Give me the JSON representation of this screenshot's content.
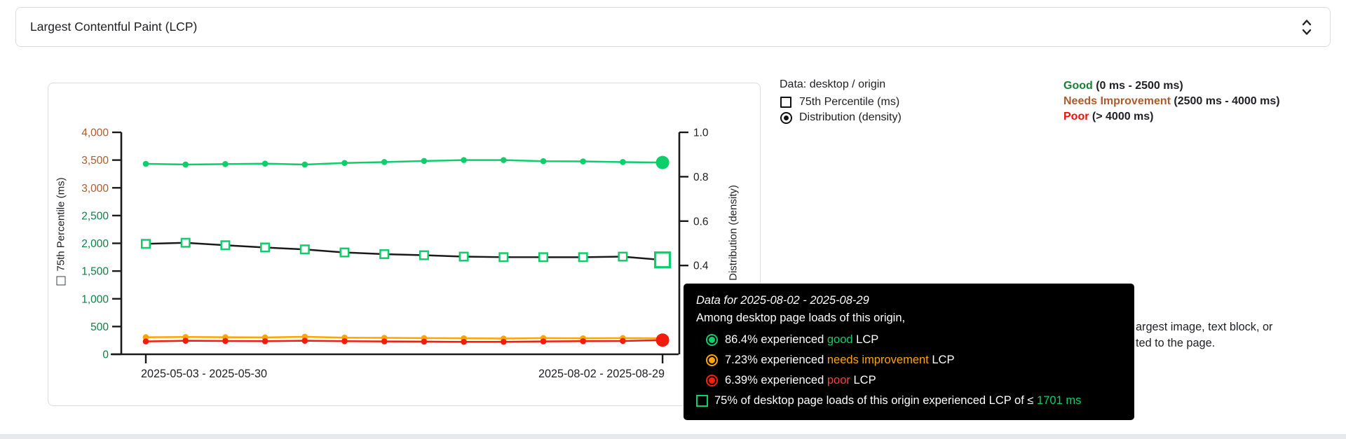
{
  "header": {
    "title": "Largest Contentful Paint (LCP)"
  },
  "meta": {
    "data_label": "Data: desktop / origin",
    "series_legend": [
      {
        "icon": "square-outline-icon",
        "label": "75th Percentile (ms)"
      },
      {
        "icon": "radio-filled-icon",
        "label": "Distribution (density)"
      }
    ],
    "thresholds": [
      {
        "name": "Good",
        "range": " (0 ms - 2500 ms)",
        "color": "#188038"
      },
      {
        "name": "Needs Improvement",
        "range": " (2500 ms - 4000 ms)",
        "color": "#ac5b2e"
      },
      {
        "name": "Poor",
        "range": " (> 4000 ms)",
        "color": "#e8140b"
      }
    ]
  },
  "description_fragments": {
    "line1": "argest image, text block, or",
    "line2": "ted to the page."
  },
  "tooltip": {
    "title": "Data for 2025-08-02 - 2025-08-29",
    "subtitle": "Among desktop page loads of this origin,",
    "rows": [
      {
        "icon": "good-circle-icon",
        "color": "#0cce6b",
        "prefix": "86.4% experienced ",
        "highlight": "good",
        "suffix": " LCP"
      },
      {
        "icon": "needs-improvement-circle-icon",
        "color": "#ffa400",
        "prefix": "7.23% experienced ",
        "highlight": "needs improvement",
        "suffix": " LCP"
      },
      {
        "icon": "poor-circle-icon",
        "color": "#ff1c0f",
        "prefix": "6.39% experienced ",
        "highlight": "poor",
        "suffix": " LCP"
      },
      {
        "icon": "p75-square-icon",
        "color": "#0cce6b",
        "prefix": "75% of desktop page loads of this origin experienced LCP of ≤ ",
        "highlight": "1701 ms",
        "suffix": ""
      }
    ]
  },
  "chart_data": {
    "type": "line",
    "title": "",
    "x_tick_labels": [
      "2025-05-03 - 2025-05-30",
      "2025-08-02 - 2025-08-29"
    ],
    "x_point_count": 14,
    "left_axis": {
      "label": "75th Percentile (ms)",
      "lim": [
        0,
        4000
      ],
      "ticks": [
        {
          "label": "4,000",
          "value": 4000,
          "color": "#ac5b2e"
        },
        {
          "label": "3,500",
          "value": 3500,
          "color": "#ac5b2e"
        },
        {
          "label": "3,000",
          "value": 3000,
          "color": "#ac5b2e"
        },
        {
          "label": "2,500",
          "value": 2500,
          "color": "#0a8145"
        },
        {
          "label": "2,000",
          "value": 2000,
          "color": "#0a8145"
        },
        {
          "label": "1,500",
          "value": 1500,
          "color": "#0a8145"
        },
        {
          "label": "1,000",
          "value": 1000,
          "color": "#0a8145"
        },
        {
          "label": "500",
          "value": 500,
          "color": "#0a8145"
        },
        {
          "label": "0",
          "value": 0,
          "color": "#0a8145"
        }
      ]
    },
    "right_axis": {
      "label": "Distribution (density)",
      "lim": [
        0,
        1
      ],
      "ticks": [
        {
          "label": "1.0",
          "value": 1.0
        },
        {
          "label": "0.8",
          "value": 0.8
        },
        {
          "label": "0.6",
          "value": 0.6
        },
        {
          "label": "0.4",
          "value": 0.4
        }
      ]
    },
    "series": [
      {
        "name": "needs-improvement-density",
        "axis": "right",
        "color": "#ffa400",
        "marker": "dot",
        "end_marker": "dot",
        "values": [
          0.077,
          0.078,
          0.077,
          0.076,
          0.079,
          0.075,
          0.074,
          0.073,
          0.072,
          0.071,
          0.073,
          0.072,
          0.073,
          0.0723
        ]
      },
      {
        "name": "poor-density",
        "axis": "right",
        "color": "#f21c0e",
        "marker": "dot",
        "end_marker": "big-dot",
        "values": [
          0.058,
          0.061,
          0.06,
          0.059,
          0.061,
          0.059,
          0.058,
          0.057,
          0.056,
          0.056,
          0.058,
          0.059,
          0.06,
          0.0639
        ]
      },
      {
        "name": "good-density",
        "axis": "right",
        "color": "#0cce6b",
        "marker": "dot",
        "end_marker": "big-dot",
        "values": [
          0.858,
          0.855,
          0.857,
          0.859,
          0.855,
          0.862,
          0.866,
          0.871,
          0.875,
          0.875,
          0.87,
          0.869,
          0.866,
          0.864
        ]
      },
      {
        "name": "p75-percentile-ms",
        "axis": "left",
        "color": "#1a1a1a",
        "marker_color": "#0cce6b",
        "marker": "square",
        "end_marker": "big-square",
        "values": [
          1990,
          2010,
          1965,
          1925,
          1890,
          1835,
          1805,
          1785,
          1760,
          1750,
          1750,
          1750,
          1760,
          1701
        ]
      }
    ],
    "last_point_summary": {
      "good_pct": "86.4%",
      "needs_improvement_pct": "7.23%",
      "poor_pct": "6.39%",
      "p75_ms": 1701
    }
  }
}
